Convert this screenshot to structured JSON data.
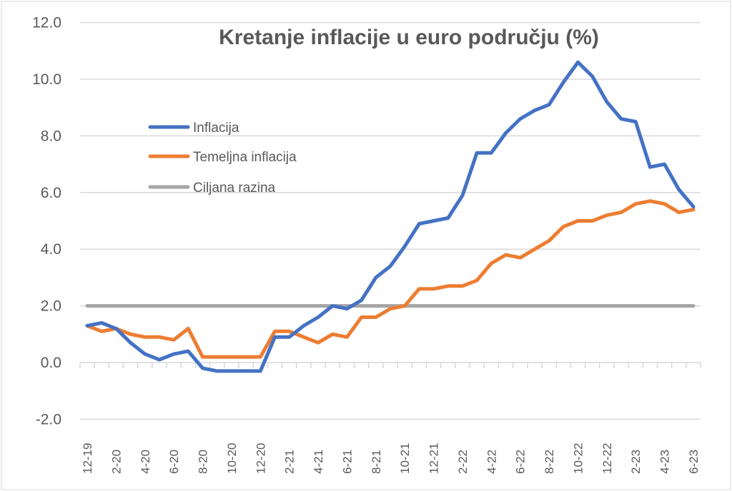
{
  "chart_data": {
    "type": "line",
    "title": "Kretanje inflacije u euro području (%)",
    "xlabel": "",
    "ylabel": "",
    "ylim": [
      -2,
      12
    ],
    "yticks": [
      "12.0",
      "10.0",
      "8.0",
      "6.0",
      "4.0",
      "2.0",
      "0.0",
      "-2.0"
    ],
    "ytick_values": [
      12,
      10,
      8,
      6,
      4,
      2,
      0,
      -2
    ],
    "grid": true,
    "legend": "left",
    "x": [
      "12-19",
      "1-20",
      "2-20",
      "3-20",
      "4-20",
      "5-20",
      "6-20",
      "7-20",
      "8-20",
      "9-20",
      "10-20",
      "11-20",
      "12-20",
      "1-21",
      "2-21",
      "3-21",
      "4-21",
      "5-21",
      "6-21",
      "7-21",
      "8-21",
      "9-21",
      "10-21",
      "11-21",
      "12-21",
      "1-22",
      "2-22",
      "3-22",
      "4-22",
      "5-22",
      "6-22",
      "7-22",
      "8-22",
      "9-22",
      "10-22",
      "11-22",
      "12-22",
      "1-23",
      "2-23",
      "3-23",
      "4-23",
      "5-23",
      "6-23"
    ],
    "xtick_labels": [
      "12-19",
      "2-20",
      "4-20",
      "6-20",
      "8-20",
      "10-20",
      "12-20",
      "2-21",
      "4-21",
      "6-21",
      "8-21",
      "10-21",
      "12-21",
      "2-22",
      "4-22",
      "6-22",
      "8-22",
      "10-22",
      "12-22",
      "2-23",
      "4-23",
      "6-23"
    ],
    "series": [
      {
        "name": "Inflacija",
        "color": "#4472c4",
        "values": [
          1.3,
          1.4,
          1.2,
          0.7,
          0.3,
          0.1,
          0.3,
          0.4,
          -0.2,
          -0.3,
          -0.3,
          -0.3,
          -0.3,
          0.9,
          0.9,
          1.3,
          1.6,
          2.0,
          1.9,
          2.2,
          3.0,
          3.4,
          4.1,
          4.9,
          5.0,
          5.1,
          5.9,
          7.4,
          7.4,
          8.1,
          8.6,
          8.9,
          9.1,
          9.9,
          10.6,
          10.1,
          9.2,
          8.6,
          8.5,
          6.9,
          7.0,
          6.1,
          5.5
        ]
      },
      {
        "name": "Temeljna inflacija",
        "color": "#ed7d31",
        "values": [
          1.3,
          1.1,
          1.2,
          1.0,
          0.9,
          0.9,
          0.8,
          1.2,
          0.2,
          0.2,
          0.2,
          0.2,
          0.2,
          1.1,
          1.1,
          0.9,
          0.7,
          1.0,
          0.9,
          1.6,
          1.6,
          1.9,
          2.0,
          2.6,
          2.6,
          2.7,
          2.7,
          2.9,
          3.5,
          3.8,
          3.7,
          4.0,
          4.3,
          4.8,
          5.0,
          5.0,
          5.2,
          5.3,
          5.6,
          5.7,
          5.6,
          5.3,
          5.4
        ]
      },
      {
        "name": "Ciljana razina",
        "color": "#a5a5a5",
        "values": [
          2.0,
          2.0,
          2.0,
          2.0,
          2.0,
          2.0,
          2.0,
          2.0,
          2.0,
          2.0,
          2.0,
          2.0,
          2.0,
          2.0,
          2.0,
          2.0,
          2.0,
          2.0,
          2.0,
          2.0,
          2.0,
          2.0,
          2.0,
          2.0,
          2.0,
          2.0,
          2.0,
          2.0,
          2.0,
          2.0,
          2.0,
          2.0,
          2.0,
          2.0,
          2.0,
          2.0,
          2.0,
          2.0,
          2.0,
          2.0,
          2.0,
          2.0,
          2.0
        ]
      }
    ]
  }
}
